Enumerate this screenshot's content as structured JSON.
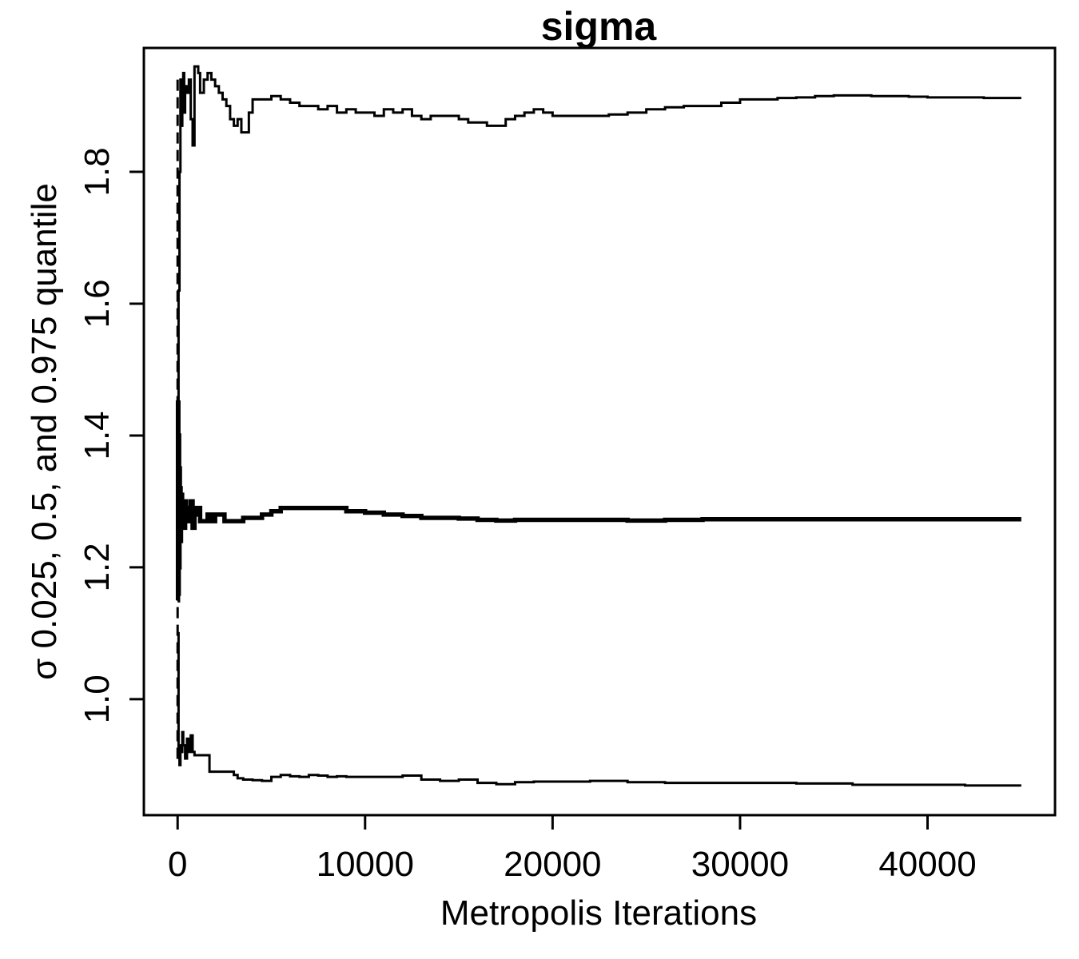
{
  "chart_data": {
    "type": "line",
    "title": "sigma",
    "xlabel": "Metropolis Iterations",
    "ylabel": "σ 0.025, 0.5, and 0.975 quantile",
    "xlim": [
      -1800,
      46800
    ],
    "ylim": [
      0.824,
      1.988
    ],
    "xticks": [
      0,
      10000,
      20000,
      30000,
      40000
    ],
    "xtick_labels": [
      "0",
      "10000",
      "20000",
      "30000",
      "40000"
    ],
    "yticks": [
      1.0,
      1.2,
      1.4,
      1.6,
      1.8
    ],
    "ytick_labels": [
      "1.0",
      "1.2",
      "1.4",
      "1.6",
      "1.8"
    ],
    "grid": false,
    "legend": "none",
    "series": [
      {
        "style": "upper",
        "x": [
          0,
          50,
          100,
          150,
          200,
          250,
          300,
          350,
          400,
          500,
          600,
          700,
          800,
          900,
          1000,
          1100,
          1200,
          1400,
          1600,
          1800,
          2000,
          2200,
          2400,
          2600,
          2800,
          3000,
          3200,
          3400,
          3600,
          3800,
          4000,
          4500,
          5000,
          5500,
          6000,
          6500,
          7000,
          7500,
          8000,
          8500,
          9000,
          9500,
          10000,
          10500,
          11000,
          11500,
          12000,
          12500,
          13000,
          13500,
          14000,
          14500,
          15000,
          15500,
          16000,
          16500,
          17000,
          17500,
          18000,
          18500,
          19000,
          19500,
          20000,
          21000,
          22000,
          23000,
          24000,
          25000,
          26000,
          27000,
          28000,
          29000,
          30000,
          31000,
          32000,
          33000,
          34000,
          35000,
          36000,
          37000,
          38000,
          39000,
          40000,
          41000,
          42000,
          43000,
          44000,
          45000
        ],
        "y": [
          1.45,
          1.62,
          1.8,
          1.94,
          1.87,
          1.93,
          1.95,
          1.89,
          1.93,
          1.92,
          1.94,
          1.88,
          1.84,
          1.96,
          1.96,
          1.95,
          1.92,
          1.94,
          1.95,
          1.94,
          1.93,
          1.92,
          1.91,
          1.9,
          1.88,
          1.87,
          1.88,
          1.86,
          1.86,
          1.89,
          1.91,
          1.91,
          1.915,
          1.91,
          1.905,
          1.9,
          1.9,
          1.895,
          1.9,
          1.89,
          1.895,
          1.89,
          1.89,
          1.885,
          1.895,
          1.89,
          1.895,
          1.885,
          1.88,
          1.885,
          1.885,
          1.885,
          1.88,
          1.875,
          1.875,
          1.87,
          1.87,
          1.88,
          1.885,
          1.89,
          1.895,
          1.89,
          1.885,
          1.885,
          1.885,
          1.887,
          1.89,
          1.895,
          1.898,
          1.9,
          1.9,
          1.905,
          1.91,
          1.91,
          1.912,
          1.913,
          1.915,
          1.916,
          1.916,
          1.915,
          1.915,
          1.914,
          1.913,
          1.913,
          1.913,
          1.912,
          1.912,
          1.912
        ]
      },
      {
        "style": "median",
        "x": [
          0,
          20,
          40,
          60,
          80,
          100,
          120,
          140,
          160,
          180,
          200,
          220,
          240,
          260,
          280,
          300,
          350,
          400,
          450,
          500,
          600,
          700,
          800,
          900,
          1000,
          1200,
          1400,
          1600,
          1800,
          2000,
          2500,
          3000,
          3500,
          4000,
          4500,
          5000,
          5500,
          6000,
          7000,
          8000,
          9000,
          10000,
          11000,
          12000,
          13000,
          14000,
          15000,
          16000,
          17000,
          18000,
          20000,
          22000,
          24000,
          26000,
          28000,
          30000,
          33000,
          36000,
          39000,
          42000,
          45000
        ],
        "y": [
          1.15,
          1.45,
          1.16,
          1.4,
          1.2,
          1.35,
          1.25,
          1.32,
          1.24,
          1.3,
          1.27,
          1.31,
          1.26,
          1.29,
          1.27,
          1.28,
          1.26,
          1.3,
          1.27,
          1.29,
          1.27,
          1.3,
          1.26,
          1.28,
          1.29,
          1.27,
          1.27,
          1.28,
          1.27,
          1.28,
          1.27,
          1.27,
          1.275,
          1.275,
          1.28,
          1.285,
          1.29,
          1.29,
          1.29,
          1.29,
          1.285,
          1.283,
          1.28,
          1.278,
          1.275,
          1.275,
          1.274,
          1.272,
          1.271,
          1.272,
          1.272,
          1.272,
          1.271,
          1.272,
          1.273,
          1.273,
          1.273,
          1.273,
          1.273,
          1.273,
          1.273
        ]
      },
      {
        "style": "lower",
        "x": [
          0,
          50,
          100,
          150,
          200,
          250,
          300,
          400,
          500,
          600,
          700,
          800,
          900,
          1000,
          1200,
          1500,
          1700,
          2000,
          2500,
          3000,
          3200,
          3500,
          4000,
          4500,
          5000,
          5500,
          6000,
          6500,
          7000,
          7500,
          8000,
          8500,
          9000,
          10000,
          11000,
          12000,
          13000,
          14000,
          15000,
          16000,
          17000,
          18000,
          19000,
          20000,
          22000,
          24000,
          26000,
          28000,
          30000,
          33000,
          36000,
          39000,
          42000,
          45000
        ],
        "y": [
          1.1,
          0.92,
          0.9,
          0.93,
          0.92,
          0.95,
          0.93,
          0.91,
          0.94,
          0.92,
          0.945,
          0.92,
          0.915,
          0.915,
          0.915,
          0.915,
          0.89,
          0.89,
          0.89,
          0.885,
          0.88,
          0.878,
          0.877,
          0.876,
          0.882,
          0.885,
          0.883,
          0.882,
          0.885,
          0.884,
          0.882,
          0.883,
          0.882,
          0.882,
          0.882,
          0.884,
          0.878,
          0.876,
          0.878,
          0.873,
          0.871,
          0.874,
          0.875,
          0.875,
          0.876,
          0.874,
          0.873,
          0.873,
          0.873,
          0.872,
          0.87,
          0.87,
          0.869,
          0.869
        ]
      }
    ]
  }
}
